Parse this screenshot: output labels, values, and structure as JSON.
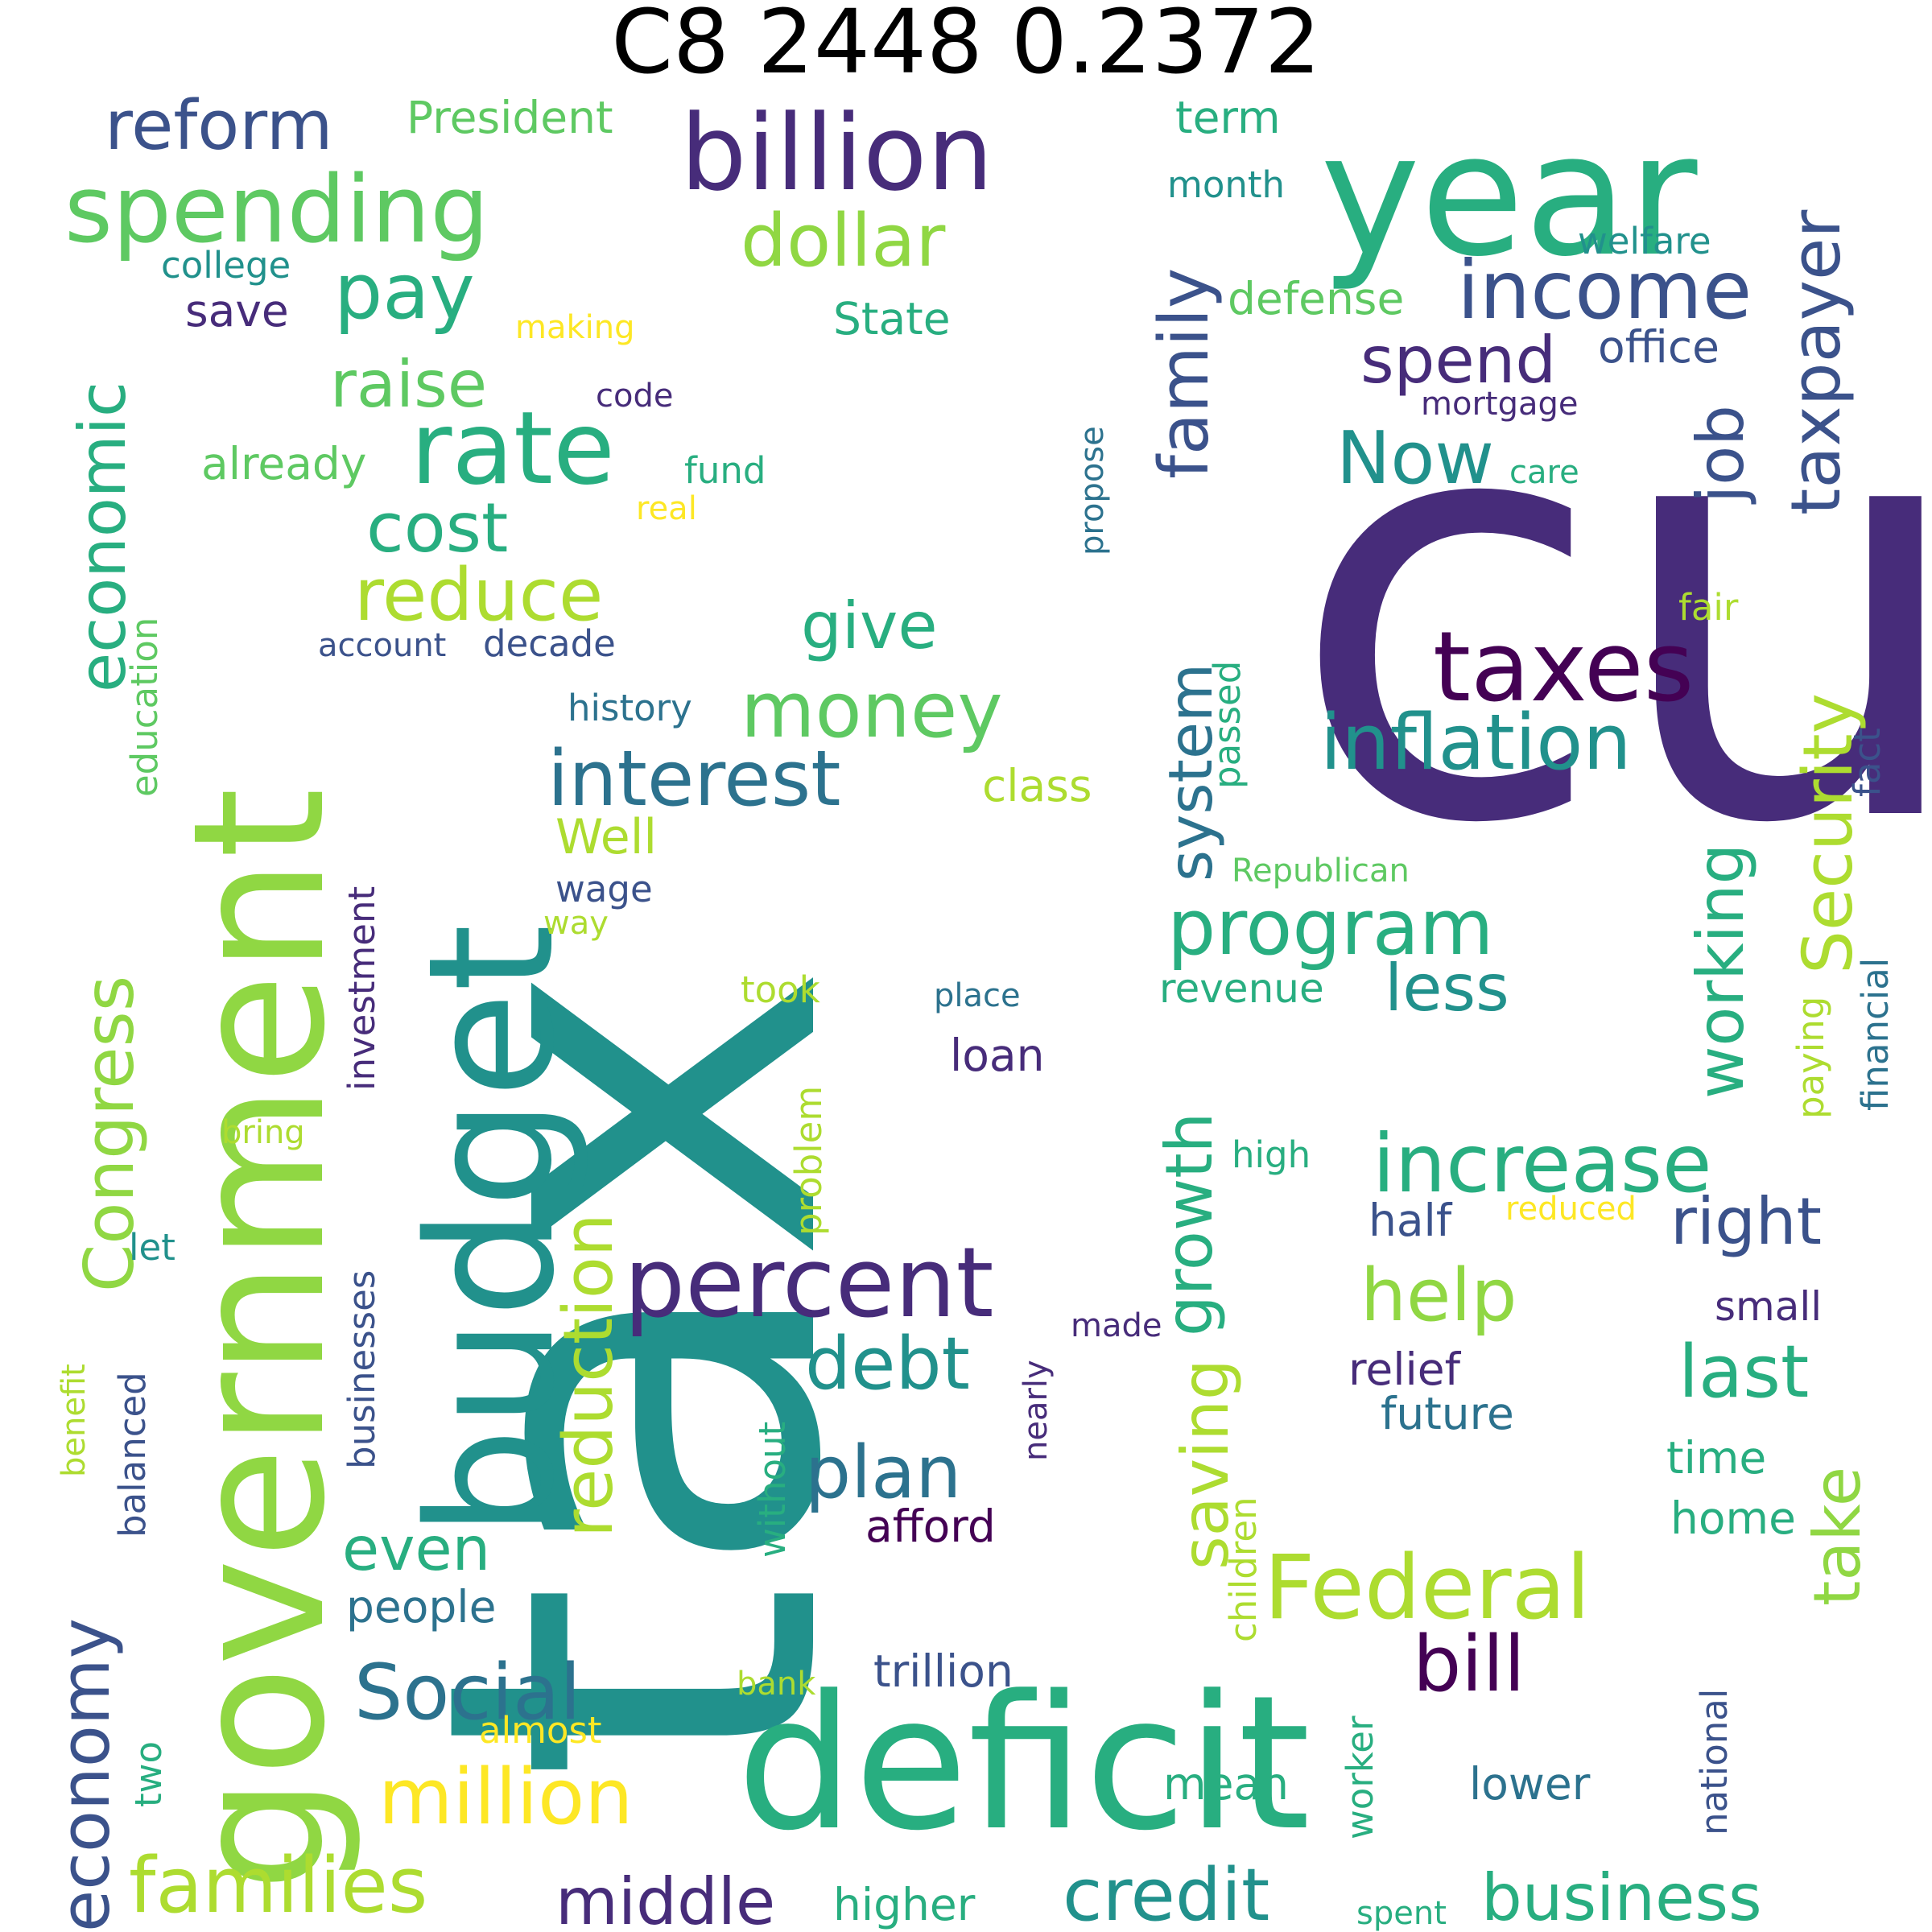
{
  "title": "C8 2448 0.2372",
  "palette": {
    "c1": "#472c7a",
    "c2": "#3b528b",
    "c3": "#2c728e",
    "c4": "#21918c",
    "c5": "#28ae80",
    "c6": "#5ec962",
    "c7": "#addc30",
    "c8": "#fde725",
    "c9": "#440154",
    "c10": "#90d743"
  },
  "words": [
    "tax",
    "cut",
    "government",
    "budget",
    "deficit",
    "year",
    "billion",
    "spending",
    "rate",
    "percent",
    "taxes",
    "Federal",
    "income",
    "increase",
    "inflation",
    "interest",
    "money",
    "program",
    "dollar",
    "reform",
    "pay",
    "family",
    "economic",
    "Congress",
    "economy",
    "taxpayer",
    "Security",
    "Social",
    "million",
    "families",
    "credit",
    "business",
    "middle",
    "reduction",
    "growth",
    "saving",
    "working",
    "debt",
    "plan",
    "bill",
    "help",
    "last",
    "right",
    "take",
    "reduce",
    "cost",
    "raise",
    "give",
    "spend",
    "job",
    "system",
    "even",
    "less",
    "Now",
    "President",
    "term",
    "month",
    "welfare",
    "college",
    "save",
    "making",
    "State",
    "defense",
    "office",
    "mortgage",
    "code",
    "already",
    "fund",
    "care",
    "real",
    "propose",
    "education",
    "fair",
    "account",
    "decade",
    "passed",
    "history",
    "class",
    "fact",
    "Well",
    "Republican",
    "wage",
    "way",
    "investment",
    "financial",
    "paying",
    "revenue",
    "took",
    "place",
    "loan",
    "problem",
    "bring",
    "high",
    "businesses",
    "reduced",
    "half",
    "let",
    "made",
    "small",
    "benefit",
    "balanced",
    "nearly",
    "relief",
    "without",
    "future",
    "children",
    "time",
    "home",
    "afford",
    "people",
    "two",
    "trillion",
    "bank",
    "almost",
    "worker",
    "national",
    "mean",
    "lower",
    "higher",
    "spent"
  ]
}
